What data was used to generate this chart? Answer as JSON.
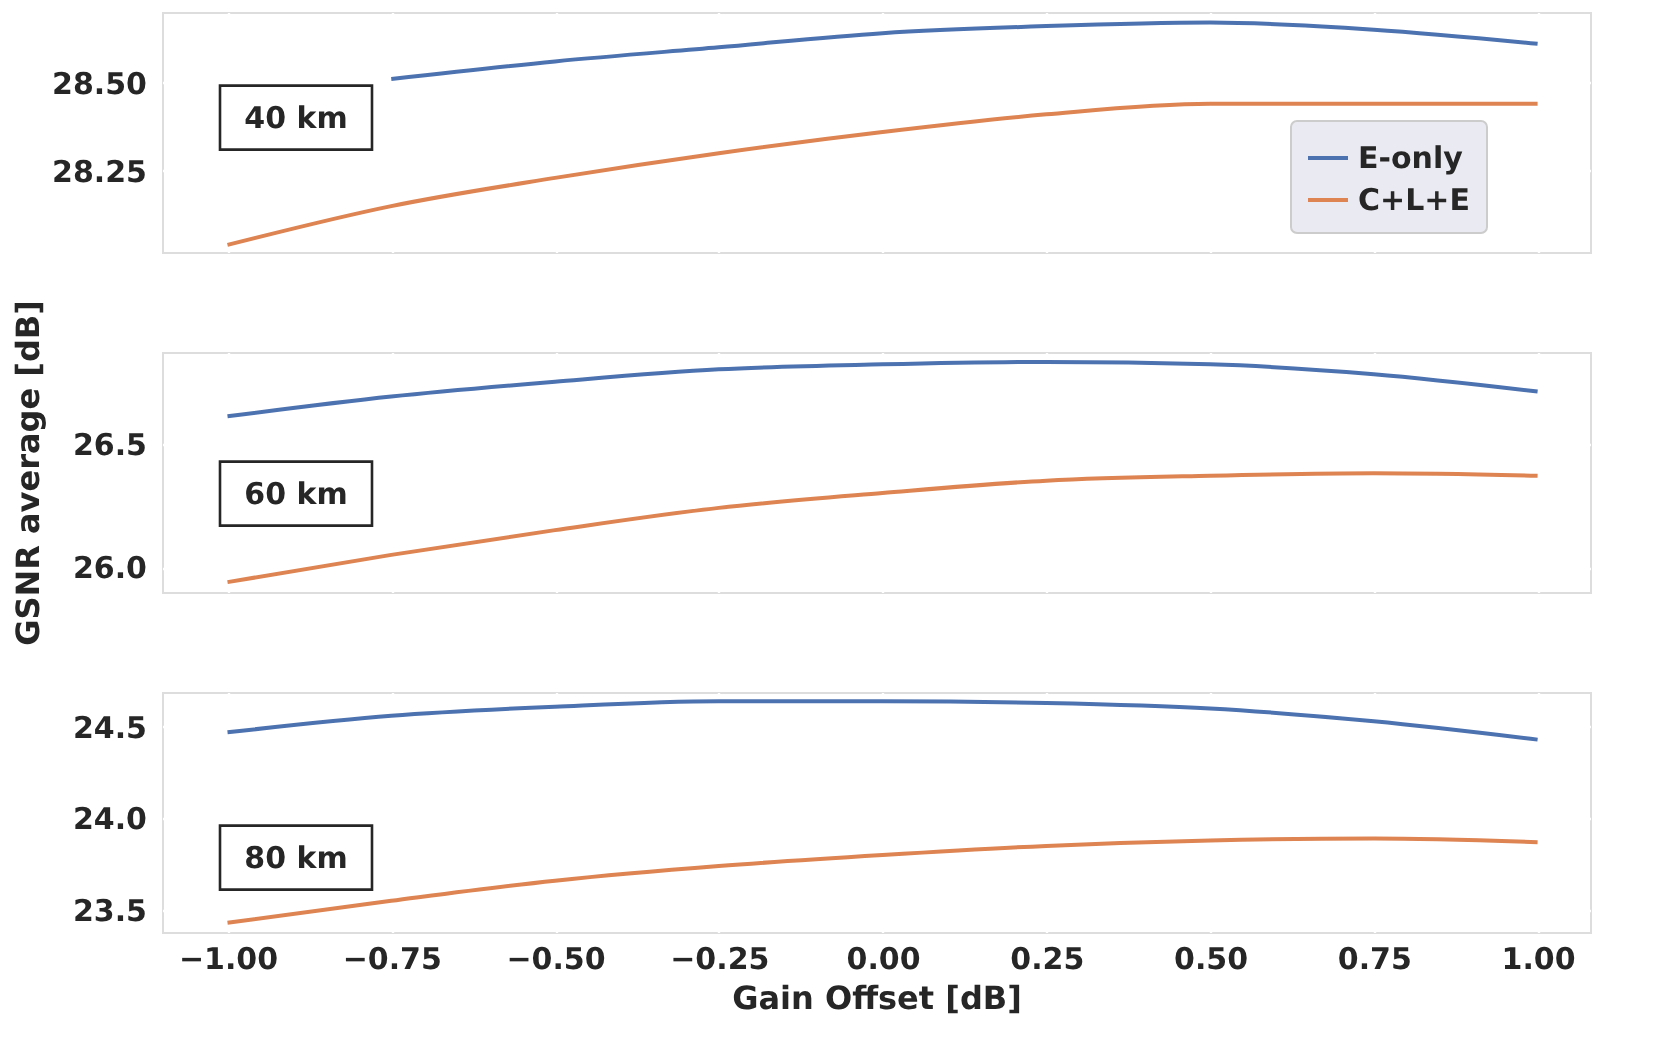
{
  "chart_data": [
    {
      "type": "line",
      "x": [
        -1,
        -0.75,
        -0.5,
        -0.25,
        0,
        0.25,
        0.5,
        0.75,
        1
      ],
      "xlim": [
        -1.1,
        1.08
      ],
      "xticks": [
        -1.0,
        -0.75,
        -0.5,
        -0.25,
        0.0,
        0.25,
        0.5,
        0.75,
        1.0
      ],
      "ylim": [
        28.02,
        28.7
      ],
      "yticks": [
        {
          "value": 28.25,
          "label": "28.25"
        },
        {
          "value": 28.5,
          "label": "28.50"
        }
      ],
      "tick_labels": "y",
      "grid": true,
      "legend": "right",
      "annotations": [
        "40 km"
      ],
      "series": [
        {
          "name": "E-only",
          "color": "#4c72b0",
          "values": [
            null,
            28.51,
            28.56,
            28.6,
            28.64,
            28.66,
            28.67,
            28.65,
            28.61
          ]
        },
        {
          "name": "C+L+E",
          "color": "#dd8452",
          "values": [
            28.04,
            28.15,
            28.23,
            28.3,
            28.36,
            28.41,
            28.44,
            28.44,
            28.44
          ]
        }
      ]
    },
    {
      "type": "line",
      "x": [
        -1,
        -0.75,
        -0.5,
        -0.25,
        0,
        0.25,
        0.5,
        0.75,
        1
      ],
      "xlim": [
        -1.1,
        1.08
      ],
      "xticks": [
        -1.0,
        -0.75,
        -0.5,
        -0.25,
        0.0,
        0.25,
        0.5,
        0.75,
        1.0
      ],
      "ylim": [
        25.9,
        26.87
      ],
      "yticks": [
        {
          "value": 26.0,
          "label": "26.0"
        },
        {
          "value": 26.5,
          "label": "26.5"
        }
      ],
      "tick_labels": "y",
      "grid": true,
      "ylabel": "GSNR average [dB]",
      "annotations": [
        "60 km"
      ],
      "series": [
        {
          "color": "#4c72b0",
          "values": [
            26.61,
            26.69,
            26.75,
            26.8,
            26.82,
            26.83,
            26.82,
            26.78,
            26.71
          ]
        },
        {
          "color": "#dd8452",
          "values": [
            25.94,
            26.05,
            26.15,
            26.24,
            26.3,
            26.35,
            26.37,
            26.38,
            26.37
          ]
        }
      ]
    },
    {
      "type": "line",
      "x": [
        -1,
        -0.75,
        -0.5,
        -0.25,
        0,
        0.25,
        0.5,
        0.75,
        1
      ],
      "xlim": [
        -1.1,
        1.08
      ],
      "xticks": [
        {
          "value": -1.0,
          "label": "−1.00"
        },
        {
          "value": -0.75,
          "label": "−0.75"
        },
        {
          "value": -0.5,
          "label": "−0.50"
        },
        {
          "value": -0.25,
          "label": "−0.25"
        },
        {
          "value": 0.0,
          "label": "0.00"
        },
        {
          "value": 0.25,
          "label": "0.25"
        },
        {
          "value": 0.5,
          "label": "0.50"
        },
        {
          "value": 0.75,
          "label": "0.75"
        },
        {
          "value": 1.0,
          "label": "1.00"
        }
      ],
      "ylim": [
        23.38,
        24.69
      ],
      "yticks": [
        {
          "value": 23.5,
          "label": "23.5"
        },
        {
          "value": 24.0,
          "label": "24.0"
        },
        {
          "value": 24.5,
          "label": "24.5"
        }
      ],
      "grid": true,
      "xlabel": "Gain Offset [dB]",
      "annotations": [
        "80 km"
      ],
      "series": [
        {
          "color": "#4c72b0",
          "values": [
            24.47,
            24.56,
            24.61,
            24.64,
            24.64,
            24.63,
            24.6,
            24.53,
            24.43
          ]
        },
        {
          "color": "#dd8452",
          "values": [
            23.43,
            23.55,
            23.66,
            23.74,
            23.8,
            23.85,
            23.88,
            23.89,
            23.87
          ]
        }
      ]
    }
  ]
}
